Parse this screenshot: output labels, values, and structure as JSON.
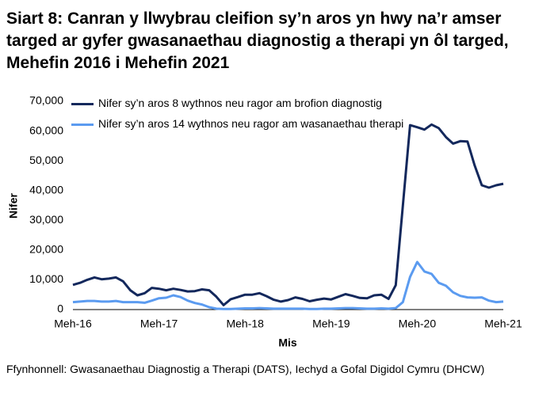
{
  "chart_data": {
    "type": "line",
    "title": "Siart 8: Canran y llwybrau cleifion sy’n aros yn hwy na’r amser targed ar gyfer gwasanaethau diagnostig a therapi yn ôl targed, Mehefin 2016 i Mehefin 2021",
    "x_label": "Mis",
    "y_label": "Nifer",
    "source": "Ffynhonnell: Gwasanaethau Diagnostig a Therapi (DATS), Iechyd a Gofal Digidol Cymru (DHCW)",
    "categories": [
      "Meh-16",
      null,
      null,
      null,
      null,
      null,
      null,
      null,
      null,
      null,
      null,
      null,
      "Meh-17",
      null,
      null,
      null,
      null,
      null,
      null,
      null,
      null,
      null,
      null,
      null,
      "Meh-18",
      null,
      null,
      null,
      null,
      null,
      null,
      null,
      null,
      null,
      null,
      null,
      "Meh-19",
      null,
      null,
      null,
      null,
      null,
      null,
      null,
      null,
      null,
      null,
      null,
      "Meh-20",
      null,
      null,
      null,
      null,
      null,
      null,
      null,
      null,
      null,
      null,
      null,
      "Meh-21"
    ],
    "series": [
      {
        "name": "Nifer sy’n aros 8 wythnos neu ragor am brofion diagnostig",
        "color": "#13285c",
        "values": [
          8300,
          9000,
          10000,
          10800,
          10200,
          10400,
          10800,
          9500,
          6500,
          4800,
          5500,
          7300,
          7000,
          6500,
          7000,
          6600,
          6100,
          6200,
          6800,
          6500,
          4300,
          1500,
          3500,
          4200,
          5000,
          5000,
          5500,
          4500,
          3300,
          2700,
          3200,
          4100,
          3600,
          2800,
          3300,
          3700,
          3400,
          4300,
          5200,
          4600,
          3900,
          3800,
          4800,
          5000,
          3600,
          8200,
          35000,
          62000,
          61300,
          60500,
          62200,
          61000,
          58000,
          55800,
          56600,
          56500,
          48500,
          41800,
          41000,
          41800,
          42300
        ]
      },
      {
        "name": "Nifer sy’n aros 14 wythnos neu ragor am wasanaethau therapi",
        "color": "#5b9bf0",
        "values": [
          2500,
          2700,
          2900,
          2900,
          2700,
          2700,
          2900,
          2500,
          2500,
          2500,
          2300,
          3000,
          3800,
          4000,
          4800,
          4200,
          3000,
          2200,
          1700,
          800,
          300,
          200,
          200,
          300,
          400,
          400,
          500,
          400,
          300,
          300,
          300,
          300,
          300,
          200,
          200,
          300,
          300,
          400,
          500,
          500,
          400,
          300,
          300,
          400,
          300,
          500,
          2500,
          11000,
          16000,
          12800,
          12000,
          9000,
          8000,
          5800,
          4600,
          4100,
          4000,
          4100,
          3000,
          2500,
          2700
        ]
      }
    ],
    "ylim": [
      0,
      70000
    ],
    "yticks": [
      0,
      {
        "value": 10000,
        "label": "10,000"
      },
      {
        "value": 20000,
        "label": "20,000"
      },
      {
        "value": 30000,
        "label": "30,000"
      },
      {
        "value": 40000,
        "label": "40,000"
      },
      {
        "value": 50000,
        "label": "50,000"
      },
      {
        "value": 60000,
        "label": "60,000"
      },
      {
        "value": 70000,
        "label": "70,000"
      }
    ]
  }
}
